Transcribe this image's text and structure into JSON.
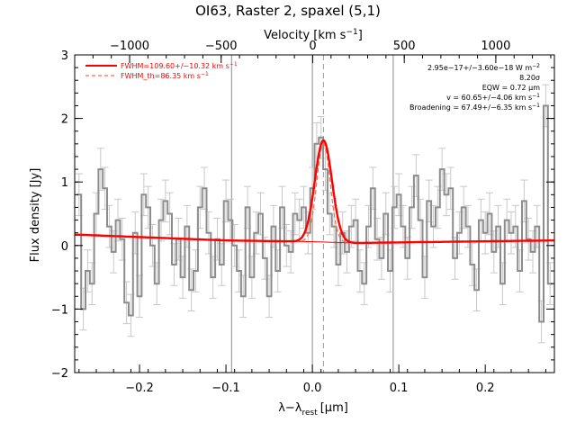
{
  "chart_data": {
    "type": "line",
    "title": "OI63, Raster 2, spaxel (5,1)",
    "xlabel": "λ−λ_rest [μm]",
    "xlabel_parts": {
      "main": "λ−λ",
      "sub": "rest",
      "unit": "[μm]"
    },
    "ylabel": "Flux density [Jy]",
    "top_axis_label": "Velocity [km s⁻¹]",
    "top_axis_label_parts": {
      "main": "Velocity [km s",
      "sup": "−1",
      "end": "]"
    },
    "xlim": [
      -0.275,
      0.28
    ],
    "ylim": [
      -2.0,
      3.0
    ],
    "top_xlim": [
      -1300,
      1320
    ],
    "x_ticks": [
      -0.2,
      -0.1,
      0.0,
      0.1,
      0.2
    ],
    "x_tick_labels": [
      "−0.2",
      "−0.1",
      "0.0",
      "0.1",
      "0.2"
    ],
    "y_ticks": [
      -2,
      -1,
      0,
      1,
      2,
      3
    ],
    "y_tick_labels": [
      "−2",
      "−1",
      "0",
      "1",
      "2",
      "3"
    ],
    "top_ticks": [
      -1000,
      -500,
      0,
      500,
      1000
    ],
    "top_tick_labels": [
      "−1000",
      "−500",
      "0",
      "500",
      "1000"
    ],
    "vlines_solid": [
      -0.0935,
      0.0,
      0.0935
    ],
    "vline_dashed": 0.0128,
    "legend": [
      {
        "label": "FWHM=109.60+/−10.32 km s",
        "sup": "−1",
        "style": "solid",
        "color": "#ff0000"
      },
      {
        "label": "FWHM_th=86.35 km s",
        "sup": "−1",
        "style": "dashed",
        "color": "#ff6a4a"
      }
    ],
    "annotations": [
      {
        "text": "2.95e−17+/−3.60e−18 W m",
        "sup": "−2"
      },
      {
        "text": "8.20σ",
        "sup": ""
      },
      {
        "text": "EQW = 0.72 μm",
        "sup": ""
      },
      {
        "text": "v = 60.65+/−4.06 km s",
        "sup": "−1"
      },
      {
        "text": "Broadening = 67.49+/−6.35 km s",
        "sup": "−1"
      }
    ],
    "series": [
      {
        "name": "data",
        "color": "#8c8c8c",
        "style": "histogram",
        "x": [
          -0.27,
          -0.265,
          -0.26,
          -0.255,
          -0.25,
          -0.245,
          -0.24,
          -0.235,
          -0.23,
          -0.225,
          -0.22,
          -0.215,
          -0.21,
          -0.205,
          -0.2,
          -0.195,
          -0.19,
          -0.185,
          -0.18,
          -0.175,
          -0.17,
          -0.165,
          -0.16,
          -0.155,
          -0.15,
          -0.145,
          -0.14,
          -0.135,
          -0.13,
          -0.125,
          -0.12,
          -0.115,
          -0.11,
          -0.105,
          -0.1,
          -0.095,
          -0.09,
          -0.085,
          -0.08,
          -0.075,
          -0.07,
          -0.065,
          -0.06,
          -0.055,
          -0.05,
          -0.045,
          -0.04,
          -0.035,
          -0.03,
          -0.025,
          -0.02,
          -0.015,
          -0.01,
          -0.005,
          0.0,
          0.005,
          0.01,
          0.015,
          0.02,
          0.025,
          0.03,
          0.035,
          0.04,
          0.045,
          0.05,
          0.055,
          0.06,
          0.065,
          0.07,
          0.075,
          0.08,
          0.085,
          0.09,
          0.095,
          0.1,
          0.105,
          0.11,
          0.115,
          0.12,
          0.125,
          0.13,
          0.135,
          0.14,
          0.145,
          0.15,
          0.155,
          0.16,
          0.165,
          0.17,
          0.175,
          0.18,
          0.185,
          0.19,
          0.195,
          0.2,
          0.205,
          0.21,
          0.215,
          0.22,
          0.225,
          0.23,
          0.235,
          0.24,
          0.245,
          0.25,
          0.255,
          0.26,
          0.265,
          0.27,
          0.275
        ],
        "y": [
          0.8,
          -1.0,
          -0.4,
          -0.6,
          0.5,
          1.2,
          0.9,
          0.3,
          -0.1,
          0.4,
          0.1,
          -0.9,
          -1.1,
          0.2,
          -0.8,
          0.8,
          0.6,
          0.0,
          -0.6,
          0.4,
          0.7,
          0.5,
          -0.3,
          0.1,
          -0.5,
          0.3,
          -0.7,
          -0.4,
          0.6,
          0.9,
          0.2,
          -0.5,
          0.1,
          -0.3,
          0.7,
          0.4,
          0.0,
          -0.4,
          -0.8,
          0.6,
          -0.5,
          0.2,
          0.5,
          -0.2,
          -0.8,
          0.3,
          -0.4,
          0.6,
          0.0,
          -0.1,
          0.5,
          0.4,
          0.6,
          0.2,
          0.9,
          1.6,
          1.7,
          1.2,
          0.5,
          0.3,
          -0.3,
          0.2,
          -0.1,
          0.3,
          0.4,
          -0.4,
          -0.6,
          0.3,
          0.9,
          0.1,
          -0.2,
          0.5,
          -0.4,
          0.6,
          0.8,
          0.3,
          -0.2,
          0.6,
          1.1,
          0.4,
          -0.5,
          0.7,
          0.3,
          0.6,
          1.2,
          0.8,
          0.9,
          -0.2,
          0.2,
          0.6,
          0.3,
          -0.3,
          -0.7,
          0.4,
          0.2,
          0.5,
          -0.1,
          0.3,
          -0.6,
          0.4,
          0.2,
          0.3,
          -0.4,
          0.7,
          0.1,
          -0.1,
          0.3,
          -1.2,
          2.2,
          -0.6
        ],
        "error": 0.33
      },
      {
        "name": "FWHM=109.60+/−10.32 km s⁻¹",
        "color": "#ff0000",
        "style": "fit",
        "baseline": {
          "x": [
            -0.27,
            -0.1,
            0.0,
            0.05,
            0.28
          ],
          "y": [
            0.17,
            0.08,
            0.06,
            0.04,
            0.08
          ]
        },
        "gaussian": {
          "center": 0.0128,
          "amplitude": 1.6,
          "fwhm": 0.0233
        }
      },
      {
        "name": "FWHM_th=86.35 km s⁻¹",
        "color": "#ff6a4a",
        "style": "dashed",
        "gaussian": {
          "center": 0.0128,
          "amplitude": 1.55,
          "fwhm": 0.0184
        }
      }
    ]
  }
}
